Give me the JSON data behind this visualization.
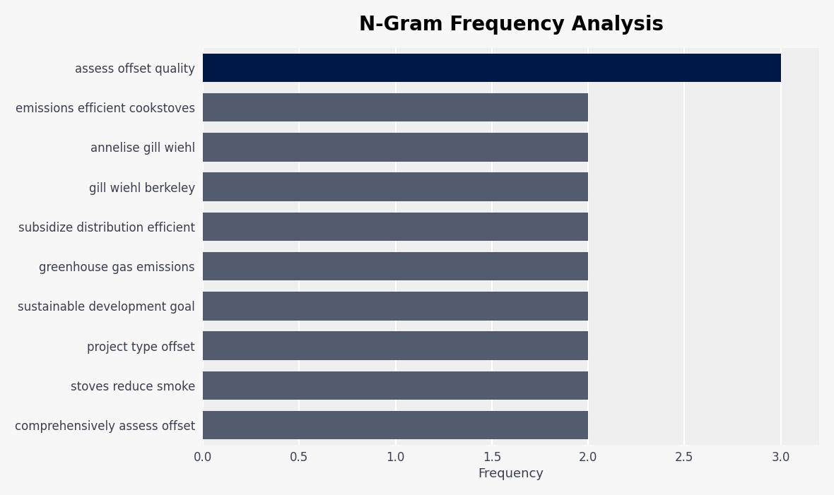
{
  "title": "N-Gram Frequency Analysis",
  "xlabel": "Frequency",
  "categories": [
    "comprehensively assess offset",
    "stoves reduce smoke",
    "project type offset",
    "sustainable development goal",
    "greenhouse gas emissions",
    "subsidize distribution efficient",
    "gill wiehl berkeley",
    "annelise gill wiehl",
    "emissions efficient cookstoves",
    "assess offset quality"
  ],
  "values": [
    2,
    2,
    2,
    2,
    2,
    2,
    2,
    2,
    2,
    3
  ],
  "bar_colors": [
    "#535c6e",
    "#535c6e",
    "#535c6e",
    "#535c6e",
    "#535c6e",
    "#535c6e",
    "#535c6e",
    "#535c6e",
    "#535c6e",
    "#001845"
  ],
  "xlim": [
    0,
    3.2
  ],
  "xticks": [
    0.0,
    0.5,
    1.0,
    1.5,
    2.0,
    2.5,
    3.0
  ],
  "plot_bg_color": "#efefef",
  "fig_bg_color": "#f7f7f7",
  "title_fontsize": 20,
  "label_fontsize": 12,
  "tick_fontsize": 12,
  "bar_height": 0.72,
  "label_color": "#3a3f52",
  "tick_color": "#3a3f52"
}
